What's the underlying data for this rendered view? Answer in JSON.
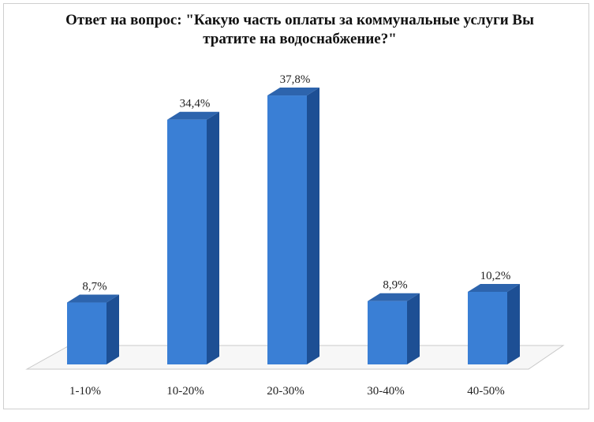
{
  "chart_data": {
    "type": "bar",
    "title": "Ответ на вопрос: \"Какую часть оплаты за коммунальные услуги Вы тратите на водоснабжение?\"",
    "categories": [
      "1-10%",
      "10-20%",
      "20-30%",
      "30-40%",
      "40-50%"
    ],
    "values": [
      8.7,
      34.4,
      37.8,
      8.9,
      10.2
    ],
    "value_labels": [
      "8,7%",
      "34,4%",
      "37,8%",
      "8,9%",
      "10,2%"
    ],
    "xlabel": "",
    "ylabel": "",
    "ylim": [
      0,
      40
    ],
    "grid": false,
    "legend": "none",
    "three_d": true,
    "colors": {
      "bar_front": "#3a7fd5",
      "bar_side": "#1d4f94",
      "bar_top": "#2d64ad",
      "floor": "#f7f7f7",
      "floor_stroke": "#c8c8c8"
    }
  }
}
